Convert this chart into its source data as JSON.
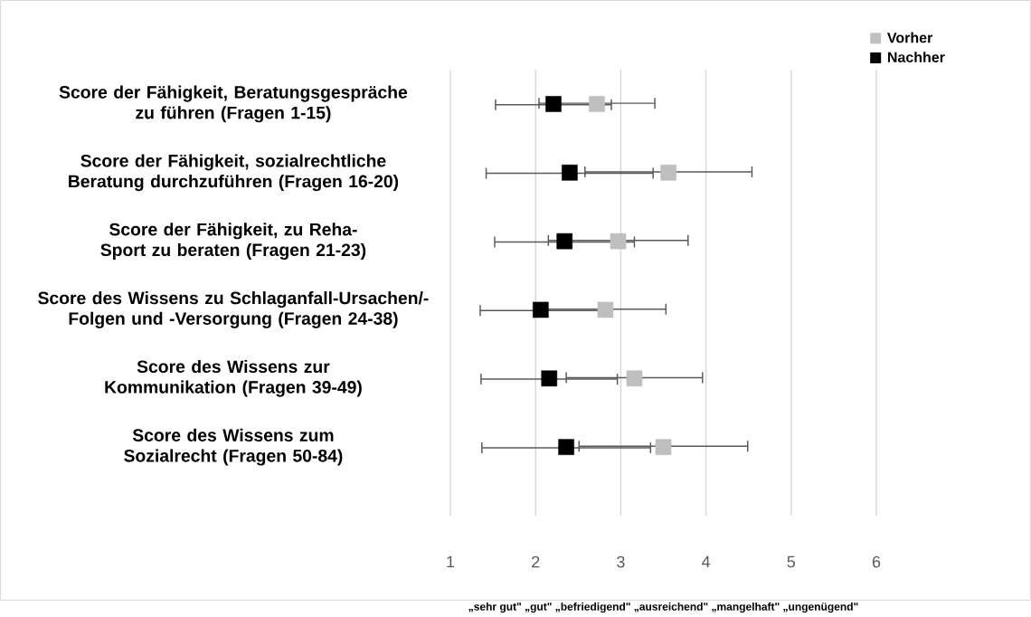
{
  "chart_data": {
    "type": "scatter",
    "orientation": "horizontal",
    "categories": [
      "Score der Fähigkeit, Beratungsgespräche zu führen (Fragen 1-15)",
      "Score der Fähigkeit, sozialrechtliche Beratung durchzuführen (Fragen 16-20)",
      "Score der Fähigkeit, zu Reha-Sport zu beraten (Fragen 21-23)",
      "Score des Wissens zu Schlaganfall-Ursachen/-Folgen und -Versorgung (Fragen 24-38)",
      "Score des Wissens zur Kommunikation (Fragen 39-49)",
      "Score des Wissens zum Sozialrecht (Fragen 50-84)"
    ],
    "xlabel": "„sehr gut\" „gut\" „befriedigend\" „ausreichend\" „mangelhaft\" „ungenügend\"",
    "xlim": [
      1,
      6
    ],
    "xticks": [
      1,
      2,
      3,
      4,
      5,
      6
    ],
    "grid": "x",
    "legend": "top right",
    "marker": "square",
    "series": [
      {
        "name": "Vorher",
        "color": "#bfbfbf",
        "values": [
          2.72,
          3.56,
          2.97,
          2.82,
          3.16,
          3.5
        ],
        "errors": [
          0.68,
          0.98,
          0.82,
          0.71,
          0.8,
          0.99
        ]
      },
      {
        "name": "Nachher",
        "color": "#000000",
        "values": [
          2.21,
          2.4,
          2.34,
          2.06,
          2.16,
          2.36
        ],
        "errors": [
          0.68,
          0.98,
          0.82,
          0.71,
          0.8,
          0.99
        ]
      }
    ]
  }
}
